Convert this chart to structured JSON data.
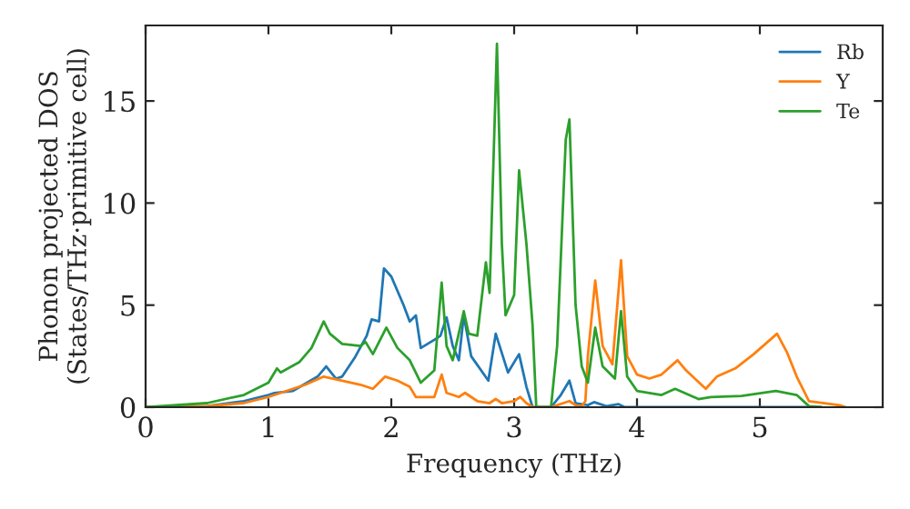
{
  "chart_data": {
    "type": "line",
    "xlabel": "Frequency (THz)",
    "ylabel": "Phonon projected DOS\n(States/THz·primitive cell)",
    "xlim": [
      0,
      6.0
    ],
    "ylim": [
      0,
      18.7
    ],
    "xticks": [
      0,
      1,
      2,
      3,
      4,
      5
    ],
    "yticks": [
      0,
      5,
      10,
      15
    ],
    "grid": false,
    "legend": "top right",
    "marker": "none",
    "line_style": "solid",
    "series": [
      {
        "name": "Rb",
        "color": "#1f77b4",
        "x": [
          0,
          0.5,
          0.8,
          1.0,
          1.05,
          1.2,
          1.4,
          1.47,
          1.55,
          1.6,
          1.7,
          1.8,
          1.84,
          1.9,
          1.94,
          2.0,
          2.1,
          2.15,
          2.2,
          2.24,
          2.35,
          2.4,
          2.45,
          2.5,
          2.55,
          2.59,
          2.65,
          2.79,
          2.85,
          2.95,
          3.04,
          3.1,
          3.15,
          3.3,
          3.38,
          3.45,
          3.5,
          3.6,
          3.65,
          3.75,
          3.85,
          3.9,
          5.5
        ],
        "values": [
          0,
          0.05,
          0.3,
          0.6,
          0.7,
          0.8,
          1.5,
          2.0,
          1.4,
          1.5,
          2.4,
          3.5,
          4.3,
          4.2,
          6.8,
          6.4,
          5.0,
          4.2,
          4.5,
          2.9,
          3.3,
          3.5,
          4.4,
          3.0,
          2.3,
          4.5,
          2.5,
          1.3,
          3.6,
          1.7,
          2.6,
          1.0,
          0,
          0,
          0.6,
          1.3,
          0.2,
          0.1,
          0.25,
          0.05,
          0.15,
          0,
          0
        ]
      },
      {
        "name": "Y",
        "color": "#ff7f0e",
        "x": [
          0,
          0.5,
          0.8,
          1.0,
          1.2,
          1.3,
          1.45,
          1.6,
          1.75,
          1.85,
          1.95,
          2.05,
          2.15,
          2.2,
          2.35,
          2.41,
          2.45,
          2.55,
          2.6,
          2.7,
          2.8,
          2.85,
          2.9,
          3.0,
          3.05,
          3.1,
          3.15,
          3.3,
          3.45,
          3.5,
          3.55,
          3.58,
          3.6,
          3.66,
          3.72,
          3.8,
          3.87,
          3.92,
          4.0,
          4.1,
          4.2,
          4.33,
          4.4,
          4.56,
          4.65,
          4.8,
          4.95,
          5.14,
          5.22,
          5.3,
          5.4,
          5.65,
          5.7
        ],
        "values": [
          0,
          0.05,
          0.2,
          0.5,
          0.9,
          1.1,
          1.5,
          1.3,
          1.1,
          0.9,
          1.5,
          1.3,
          1.0,
          0.5,
          0.5,
          1.6,
          0.7,
          0.5,
          0.7,
          0.3,
          0.2,
          0.4,
          0.2,
          0.3,
          0.5,
          0.2,
          0,
          0,
          0.3,
          0.1,
          0.05,
          0.3,
          2.5,
          6.2,
          3.0,
          2.1,
          7.2,
          2.5,
          1.6,
          1.4,
          1.6,
          2.3,
          1.8,
          0.9,
          1.5,
          1.9,
          2.6,
          3.6,
          2.7,
          1.5,
          0.3,
          0.1,
          0
        ]
      },
      {
        "name": "Te",
        "color": "#2ca02c",
        "x": [
          0,
          0.5,
          0.8,
          1.0,
          1.07,
          1.1,
          1.25,
          1.35,
          1.45,
          1.5,
          1.6,
          1.75,
          1.79,
          1.85,
          1.96,
          2.05,
          2.15,
          2.24,
          2.35,
          2.41,
          2.45,
          2.5,
          2.59,
          2.63,
          2.7,
          2.77,
          2.8,
          2.86,
          2.9,
          2.93,
          3.0,
          3.04,
          3.1,
          3.15,
          3.18,
          3.3,
          3.35,
          3.42,
          3.45,
          3.5,
          3.55,
          3.6,
          3.66,
          3.72,
          3.82,
          3.87,
          3.92,
          4.0,
          4.2,
          4.31,
          4.5,
          4.6,
          4.85,
          5.13,
          5.3,
          5.4,
          5.5
        ],
        "values": [
          0,
          0.2,
          0.6,
          1.2,
          1.9,
          1.7,
          2.2,
          2.9,
          4.2,
          3.6,
          3.1,
          3.0,
          3.2,
          2.6,
          3.9,
          2.9,
          2.3,
          1.2,
          1.8,
          6.1,
          3.0,
          2.3,
          4.7,
          3.6,
          3.5,
          7.1,
          5.6,
          17.8,
          8.0,
          4.5,
          5.5,
          11.6,
          8.0,
          4.0,
          0,
          0,
          3.0,
          13.1,
          14.1,
          5.0,
          2.0,
          1.2,
          3.9,
          2.0,
          1.4,
          4.7,
          1.5,
          0.8,
          0.6,
          0.9,
          0.4,
          0.5,
          0.55,
          0.8,
          0.6,
          0.05,
          0
        ]
      }
    ]
  }
}
